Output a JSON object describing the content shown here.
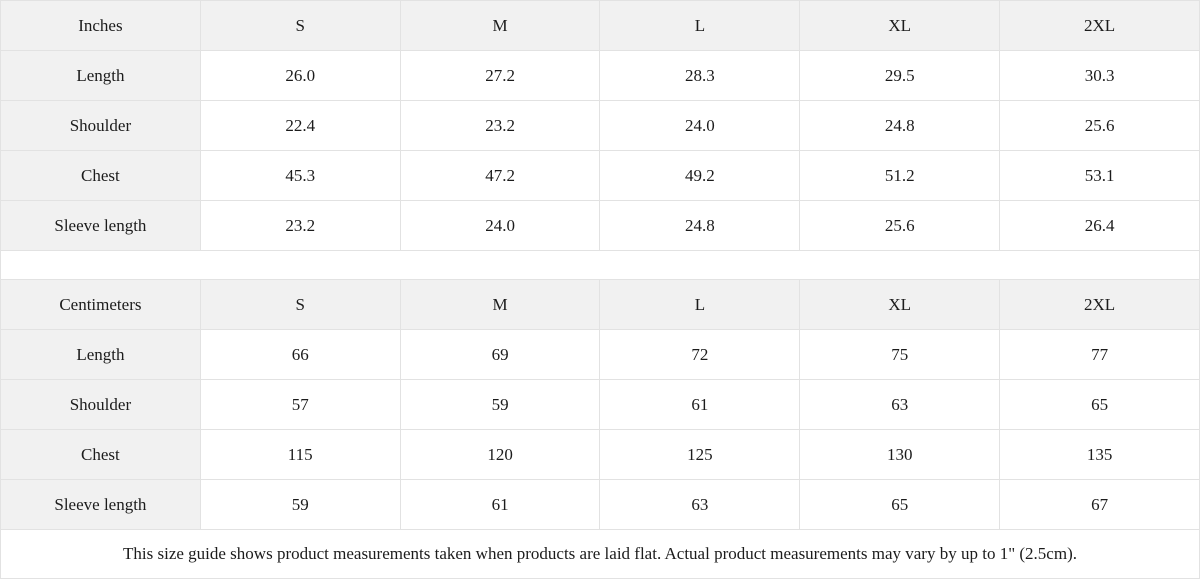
{
  "colors": {
    "header_bg": "#f1f1f1",
    "border": "#e2e2e2",
    "text": "#1c1c1c",
    "page_bg": "#ffffff"
  },
  "size_guide": {
    "inches": {
      "header": [
        "Inches",
        "S",
        "M",
        "L",
        "XL",
        "2XL"
      ],
      "rows": [
        {
          "label": "Length",
          "values": [
            "26.0",
            "27.2",
            "28.3",
            "29.5",
            "30.3"
          ]
        },
        {
          "label": "Shoulder",
          "values": [
            "22.4",
            "23.2",
            "24.0",
            "24.8",
            "25.6"
          ]
        },
        {
          "label": "Chest",
          "values": [
            "45.3",
            "47.2",
            "49.2",
            "51.2",
            "53.1"
          ]
        },
        {
          "label": "Sleeve length",
          "values": [
            "23.2",
            "24.0",
            "24.8",
            "25.6",
            "26.4"
          ]
        }
      ]
    },
    "centimeters": {
      "header": [
        "Centimeters",
        "S",
        "M",
        "L",
        "XL",
        "2XL"
      ],
      "rows": [
        {
          "label": "Length",
          "values": [
            "66",
            "69",
            "72",
            "75",
            "77"
          ]
        },
        {
          "label": "Shoulder",
          "values": [
            "57",
            "59",
            "61",
            "63",
            "65"
          ]
        },
        {
          "label": "Chest",
          "values": [
            "115",
            "120",
            "125",
            "130",
            "135"
          ]
        },
        {
          "label": "Sleeve length",
          "values": [
            "59",
            "61",
            "63",
            "65",
            "67"
          ]
        }
      ]
    },
    "note": "This size guide shows product measurements taken when products are laid flat.  Actual product measurements may vary by up to 1\" (2.5cm)."
  }
}
